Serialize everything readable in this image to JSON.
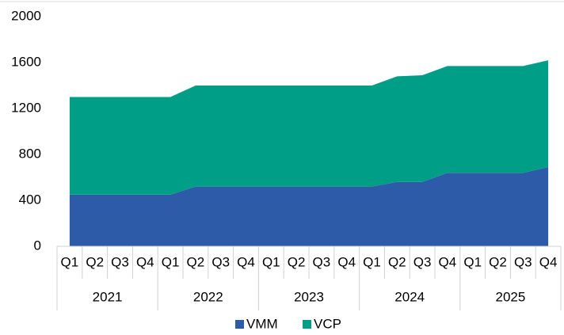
{
  "chart_data": {
    "type": "area",
    "categories": [
      "Q1",
      "Q2",
      "Q3",
      "Q4",
      "Q1",
      "Q2",
      "Q3",
      "Q4",
      "Q1",
      "Q2",
      "Q3",
      "Q4",
      "Q1",
      "Q2",
      "Q3",
      "Q4",
      "Q1",
      "Q2",
      "Q3",
      "Q4"
    ],
    "groups": [
      "2021",
      "2022",
      "2023",
      "2024",
      "2025"
    ],
    "series": [
      {
        "name": "VMM",
        "color": "#2e5ba8",
        "values": [
          450,
          450,
          450,
          450,
          450,
          520,
          520,
          520,
          520,
          520,
          520,
          520,
          520,
          560,
          560,
          640,
          640,
          640,
          640,
          690
        ]
      },
      {
        "name": "VCP",
        "color": "#009e86",
        "values": [
          850,
          850,
          850,
          850,
          850,
          880,
          880,
          880,
          880,
          880,
          880,
          880,
          880,
          920,
          930,
          930,
          930,
          930,
          930,
          930
        ]
      }
    ],
    "stacked": true,
    "ylim": [
      0,
      2000
    ],
    "yticks": [
      0,
      400,
      800,
      1200,
      1600,
      2000
    ],
    "grid": false,
    "legend": "bottom"
  }
}
